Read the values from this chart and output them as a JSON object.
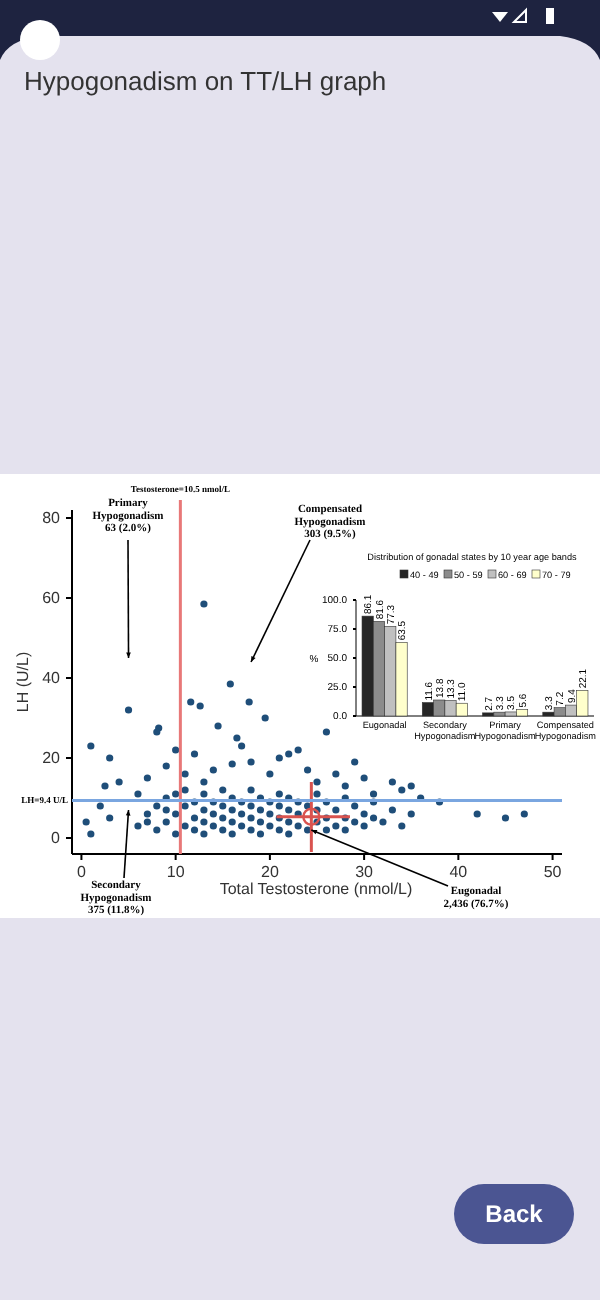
{
  "chart_data": [
    {
      "type": "scatter",
      "title": "Hypogonadism on TT/LH graph",
      "xlabel": "Total Testosterone (nmol/L)",
      "ylabel": "LH (U/L)",
      "xlim": [
        -1,
        51
      ],
      "ylim": [
        -4,
        82
      ],
      "xticks": [
        0,
        10,
        20,
        30,
        40,
        50
      ],
      "yticks": [
        0,
        20,
        40,
        60,
        80
      ],
      "grid": false,
      "legend": false,
      "marker": "circle",
      "ref_lines": [
        {
          "axis": "x",
          "value": 10.5,
          "label": "Testosterone=10.5 nmol/L",
          "color": "#e87878"
        },
        {
          "axis": "y",
          "value": 9.4,
          "label": "LH=9.4 U/L",
          "color": "#7aa6e0"
        }
      ],
      "annotations": [
        {
          "text": "Primary\nHypogonadism\n63 (2.0%)",
          "x": 5,
          "y": 45
        },
        {
          "text": "Compensated\nHypogonadism\n303 (9.5%)",
          "x": 18,
          "y": 44
        },
        {
          "text": "Secondary\nHypogonadism\n375 (11.8%)",
          "x": 5,
          "y": 7
        },
        {
          "text": "Eugonadal\n2,436 (76.7%)",
          "x": 24.4,
          "y": 2
        },
        "Back"
      ],
      "series": [
        {
          "type": "scatter",
          "color": "#1f4e79",
          "x": [
            13,
            15.8,
            17.8,
            11.6,
            12.6,
            5,
            1,
            19.5,
            14.5,
            8.2,
            8,
            16.5,
            26,
            3,
            10,
            12,
            18,
            21,
            22,
            9,
            4,
            2.5,
            14,
            16,
            24,
            27,
            30,
            33,
            35,
            36,
            42,
            45,
            47,
            0.5,
            1,
            3,
            2,
            6,
            7,
            20,
            25,
            28,
            31,
            34,
            38,
            29,
            23,
            17,
            11,
            13,
            6,
            7,
            8,
            8,
            9,
            9,
            10,
            10,
            11,
            11,
            11,
            12,
            12,
            12,
            13,
            13,
            13,
            13,
            14,
            14,
            14,
            15,
            15,
            15,
            15,
            16,
            16,
            16,
            16,
            17,
            17,
            17,
            18,
            18,
            18,
            18,
            19,
            19,
            19,
            19,
            20,
            20,
            20,
            21,
            21,
            21,
            21,
            22,
            22,
            22,
            22,
            23,
            23,
            23,
            24,
            24,
            25,
            25,
            25,
            26,
            26,
            26,
            27,
            27,
            28,
            28,
            28,
            29,
            29,
            30,
            30,
            31,
            31,
            32,
            33,
            34,
            35,
            9,
            10,
            7
          ],
          "values": [
            58.5,
            38.5,
            34,
            34,
            33,
            32,
            23,
            30,
            28,
            27.5,
            26.5,
            25,
            26.5,
            20,
            22,
            21,
            19,
            20,
            21,
            18,
            14,
            13,
            17,
            18.5,
            17,
            16,
            15,
            14,
            13,
            10,
            6,
            5,
            6,
            4,
            1,
            5,
            8,
            11,
            15,
            16,
            14,
            13,
            11,
            12,
            9,
            19,
            22,
            23,
            16,
            14,
            3,
            6,
            2,
            8,
            4,
            10,
            1,
            6,
            3,
            8,
            12,
            2,
            5,
            9,
            1,
            4,
            7,
            11,
            3,
            6,
            9,
            2,
            5,
            8,
            12,
            1,
            4,
            7,
            10,
            3,
            6,
            9,
            2,
            5,
            8,
            12,
            1,
            4,
            7,
            10,
            3,
            6,
            9,
            2,
            5,
            8,
            11,
            1,
            4,
            7,
            10,
            3,
            6,
            9,
            2,
            8,
            4,
            7,
            11,
            2,
            5,
            9,
            3,
            7,
            2,
            5,
            10,
            4,
            8,
            3,
            6,
            5,
            9,
            4,
            7,
            3,
            6,
            7,
            11,
            4
          ]
        },
        {
          "type": "scatter",
          "color": "#d9534f",
          "x": [
            24.4
          ],
          "values": [
            5.3
          ],
          "errors": [
            [
              -3.5,
              14
            ]
          ],
          "xerrors": [
            [
              20.7,
              28.5
            ]
          ]
        }
      ]
    },
    {
      "type": "bar",
      "title": "Distribution of gonadal states by 10 year age bands",
      "ylabel": "%",
      "categories": [
        "Eugonadal",
        "Secondary Hypogonadism",
        "Primary Hypogonadism",
        "Compensated Hypogonadism"
      ],
      "ylim": [
        0,
        100
      ],
      "yticks": [
        {
          "value": 0,
          "label": "0.0"
        },
        {
          "value": 25,
          "label": "25.0"
        },
        {
          "value": 50,
          "label": "50.0"
        },
        {
          "value": 75,
          "label": "75.0"
        },
        {
          "value": 100,
          "label": "100.0"
        }
      ],
      "legend": "top",
      "grid": false,
      "series": [
        {
          "name": "40 - 49",
          "color": "#262626",
          "values": [
            86.1,
            11.6,
            2.7,
            3.3
          ],
          "value_labels": [
            "86.1",
            "11.6",
            "2.7",
            "3.3"
          ]
        },
        {
          "name": "50 - 59",
          "color": "#8c8c8c",
          "values": [
            81.6,
            13.8,
            3.3,
            7.2
          ],
          "value_labels": [
            "81.6",
            "13.8",
            "3.3",
            "7.2"
          ]
        },
        {
          "name": "60 - 69",
          "color": "#c0c0c0",
          "values": [
            77.3,
            13.3,
            3.5,
            9.4
          ],
          "value_labels": [
            "77.3",
            "13.3",
            "3.5",
            "9.4"
          ]
        },
        {
          "name": "70 - 79",
          "color": "#ffffcc",
          "values": [
            63.5,
            11,
            5.6,
            22.1
          ],
          "value_labels": [
            "63.5",
            "11.0",
            "5.6",
            "22.1"
          ]
        }
      ]
    }
  ]
}
